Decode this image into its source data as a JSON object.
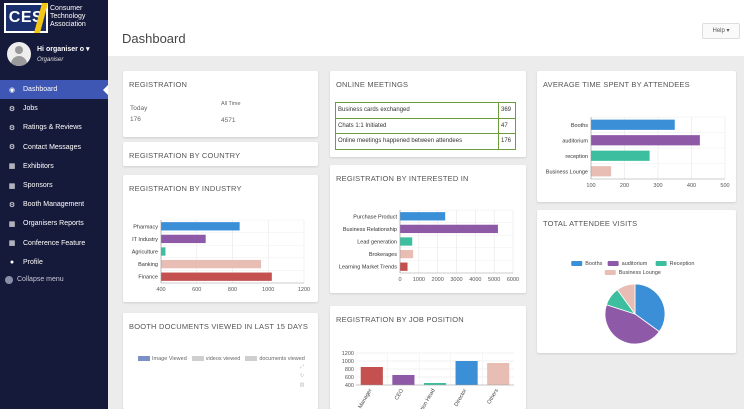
{
  "brand": {
    "badge": "CES",
    "line1": "Consumer",
    "line2": "Technology",
    "line3": "Association"
  },
  "user": {
    "name": "Hi organiser o",
    "role": "Organiser"
  },
  "menu": [
    {
      "label": "Dashboard",
      "icon": "dashboard-icon",
      "glyph": "◉",
      "active": true
    },
    {
      "label": "Jobs",
      "icon": "gear-icon",
      "glyph": "⚙"
    },
    {
      "label": "Ratings & Reviews",
      "icon": "gear-icon",
      "glyph": "⚙"
    },
    {
      "label": "Contact Messages",
      "icon": "gear-icon",
      "glyph": "⚙"
    },
    {
      "label": "Exhibitors",
      "icon": "grid-icon",
      "glyph": "▦"
    },
    {
      "label": "Sponsors",
      "icon": "grid-icon",
      "glyph": "▦"
    },
    {
      "label": "Booth Management",
      "icon": "gear-icon",
      "glyph": "⚙"
    },
    {
      "label": "Organisers Reports",
      "icon": "grid-icon",
      "glyph": "▦"
    },
    {
      "label": "Conference Feature",
      "icon": "grid-icon",
      "glyph": "▦"
    },
    {
      "label": "Profile",
      "icon": "user-icon",
      "glyph": "●"
    }
  ],
  "collapse_label": "Collapse menu",
  "header": {
    "title": "Dashboard",
    "help": "Help ▾"
  },
  "registration": {
    "title": "REGISTRATION",
    "today_label": "Today",
    "today_value": "176",
    "alltime_label": "All Time",
    "alltime_value": "4571"
  },
  "registration_country": {
    "title": "REGISTRATION BY COUNTRY"
  },
  "online_meetings": {
    "title": "ONLINE MEETINGS",
    "rows": [
      {
        "label": "Business cards exchanged",
        "value": "369"
      },
      {
        "label": "Chats 1:1 Initiated",
        "value": "47"
      },
      {
        "label": "Online meetings happened between attendees",
        "value": "176"
      }
    ]
  },
  "average_time": {
    "title": "AVERAGE TIME SPENT BY ATTENDEES"
  },
  "registration_industry": {
    "title": "REGISTRATION BY INDUSTRY"
  },
  "registration_interest": {
    "title": "REGISTRATION BY INTERESTED IN"
  },
  "total_visits": {
    "title": "TOTAL ATTENDEE VISITS"
  },
  "booth_documents": {
    "title": "BOOTH DOCUMENTS VIEWED IN LAST 15 DAYS",
    "legend": [
      {
        "name": "Image Viewed",
        "color": "#7d8fc7"
      },
      {
        "name": "videos viewed",
        "color": "#cfcfcf"
      },
      {
        "name": "documents viewed",
        "color": "#cfcfcf"
      }
    ]
  },
  "registration_job": {
    "title": "REGISTRATION BY JOB POSITION"
  },
  "chart_data": [
    {
      "id": "avg-time",
      "type": "bar",
      "orientation": "horizontal",
      "categories": [
        "Booths",
        "auditorium",
        "reception",
        "Business Lounge"
      ],
      "values": [
        350,
        425,
        275,
        160
      ],
      "colors": [
        "#3a8fd6",
        "#8e5aa8",
        "#3dbf9f",
        "#e8bdb3"
      ],
      "xlim": [
        100,
        500
      ],
      "xticks": [
        "100",
        "200",
        "300",
        "400",
        "500"
      ]
    },
    {
      "id": "industry",
      "type": "bar",
      "orientation": "horizontal",
      "categories": [
        "Pharmacy",
        "IT Industry",
        "Agriculture",
        "Banking",
        "Finance"
      ],
      "values": [
        840,
        650,
        425,
        960,
        1020
      ],
      "colors": [
        "#3a8fd6",
        "#8e5aa8",
        "#3dbf9f",
        "#e8bdb3",
        "#c45050"
      ],
      "xlim": [
        400,
        1200
      ],
      "xticks": [
        "400",
        "600",
        "800",
        "1000",
        "1200"
      ]
    },
    {
      "id": "interest",
      "type": "bar",
      "orientation": "horizontal",
      "categories": [
        "Purchase Product",
        "Business Relationship",
        "Lead generation",
        "Brokerages",
        "Learning Market Trends"
      ],
      "values": [
        2400,
        5200,
        650,
        700,
        400
      ],
      "colors": [
        "#3a8fd6",
        "#8e5aa8",
        "#3dbf9f",
        "#e8bdb3",
        "#c45050"
      ],
      "xlim": [
        0,
        6000
      ],
      "xticks": [
        "0",
        "1000",
        "2000",
        "3000",
        "4000",
        "5000",
        "6000"
      ]
    },
    {
      "id": "visits",
      "type": "pie",
      "labels": [
        "Booths",
        "auditorium",
        "Reception",
        "Business Lounge"
      ],
      "values": [
        35,
        45,
        10,
        10
      ],
      "colors": [
        "#3a8fd6",
        "#8e5aa8",
        "#3dbf9f",
        "#e8bdb3"
      ]
    },
    {
      "id": "job",
      "type": "bar",
      "orientation": "vertical",
      "categories": [
        "Manager",
        "CEO",
        "Section Head",
        "Director",
        "Others"
      ],
      "values": [
        850,
        650,
        450,
        1000,
        950
      ],
      "colors": [
        "#c45050",
        "#8e5aa8",
        "#3dbf9f",
        "#3a8fd6",
        "#e8bdb3"
      ],
      "ylim": [
        400,
        1200
      ],
      "yticks": [
        "400",
        "600",
        "800",
        "1000",
        "1200"
      ]
    }
  ]
}
